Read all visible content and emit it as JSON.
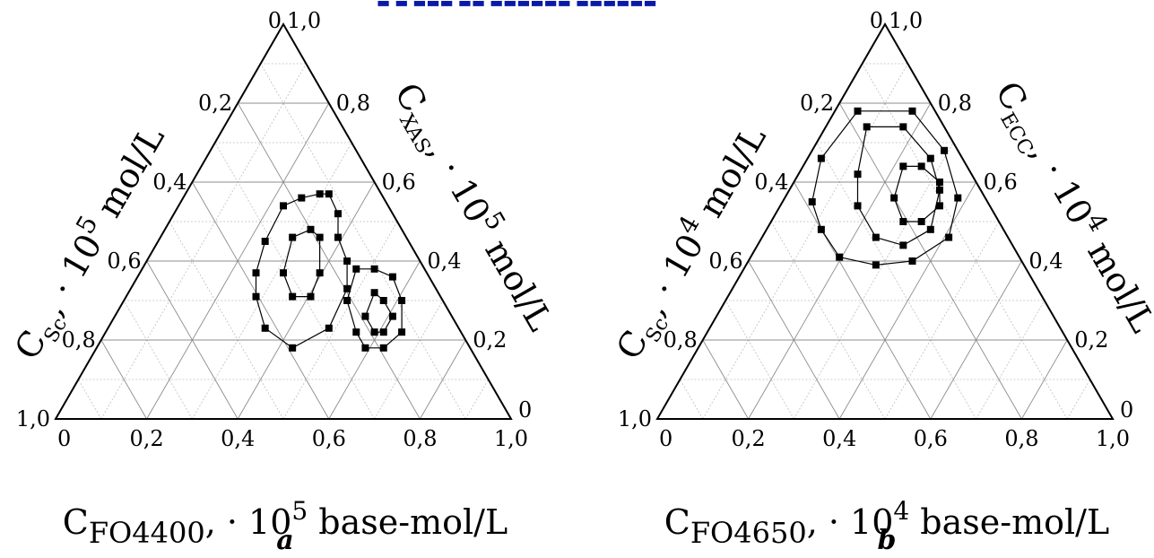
{
  "chart_data": [
    {
      "type": "scatter",
      "subtype": "ternary",
      "panel_label": "a",
      "axes": {
        "bottom": {
          "label_main": "C",
          "label_sub": "FO4400",
          "label_rest": ", · 10",
          "label_exp": "5",
          "label_unit": "base-mol/L",
          "ticks": [
            "0",
            "0,2",
            "0,4",
            "0,6",
            "0,8",
            "1,0"
          ]
        },
        "left": {
          "label_main": "C",
          "label_sub": "Sc",
          "label_rest": ", · 10",
          "label_exp": "5",
          "label_unit": "mol/L",
          "ticks": [
            "1,0",
            "0,8",
            "0,6",
            "0,4",
            "0,2",
            "0"
          ]
        },
        "right": {
          "label_main": "C",
          "label_sub": "XAS",
          "label_rest": ", · 10",
          "label_exp": "5",
          "label_unit": "mol/L",
          "ticks": [
            "1,0",
            "0,8",
            "0,6",
            "0,4",
            "0,2",
            "0"
          ]
        }
      },
      "series": [
        {
          "points": [
            [
              0.5,
              0.54
            ],
            [
              0.54,
              0.56
            ],
            [
              0.58,
              0.57
            ],
            [
              0.6,
              0.57
            ],
            [
              0.62,
              0.52
            ],
            [
              0.62,
              0.46
            ],
            [
              0.64,
              0.4
            ],
            [
              0.64,
              0.33
            ],
            [
              0.6,
              0.23
            ],
            [
              0.52,
              0.18
            ],
            [
              0.46,
              0.23
            ],
            [
              0.44,
              0.31
            ],
            [
              0.44,
              0.37
            ],
            [
              0.46,
              0.45
            ],
            [
              0.5,
              0.54
            ]
          ]
        },
        {
          "points": [
            [
              0.52,
              0.46
            ],
            [
              0.56,
              0.48
            ],
            [
              0.58,
              0.46
            ],
            [
              0.58,
              0.37
            ],
            [
              0.56,
              0.31
            ],
            [
              0.52,
              0.31
            ],
            [
              0.5,
              0.37
            ],
            [
              0.52,
              0.46
            ]
          ]
        },
        {
          "points": [
            [
              0.66,
              0.38
            ],
            [
              0.7,
              0.38
            ],
            [
              0.74,
              0.36
            ],
            [
              0.76,
              0.3
            ],
            [
              0.76,
              0.22
            ],
            [
              0.72,
              0.18
            ],
            [
              0.68,
              0.18
            ],
            [
              0.66,
              0.22
            ],
            [
              0.64,
              0.3
            ],
            [
              0.66,
              0.38
            ]
          ]
        },
        {
          "points": [
            [
              0.7,
              0.32
            ],
            [
              0.72,
              0.3
            ],
            [
              0.74,
              0.26
            ],
            [
              0.72,
              0.22
            ],
            [
              0.7,
              0.22
            ],
            [
              0.68,
              0.26
            ],
            [
              0.7,
              0.32
            ]
          ]
        }
      ]
    },
    {
      "type": "scatter",
      "subtype": "ternary",
      "panel_label": "b",
      "axes": {
        "bottom": {
          "label_main": "C",
          "label_sub": "FO4650",
          "label_rest": ", · 10",
          "label_exp": "4",
          "label_unit": "base-mol/L",
          "ticks": [
            "0",
            "0,2",
            "0,4",
            "0,6",
            "0,8",
            "1,0"
          ]
        },
        "left": {
          "label_main": "C",
          "label_sub": "Sc",
          "label_rest": ", · 10",
          "label_exp": "4",
          "label_unit": "mol/L",
          "ticks": [
            "1,0",
            "0,8",
            "0,6",
            "0,4",
            "0,2",
            "0"
          ]
        },
        "right": {
          "label_main": "C",
          "label_sub": "ECC",
          "label_rest": ", · 10",
          "label_exp": "4",
          "label_unit": "mol/L",
          "ticks": [
            "1,0",
            "0,8",
            "0,6",
            "0,4",
            "0,2",
            "0"
          ]
        }
      },
      "series": [
        {
          "points": [
            [
              0.36,
              0.66
            ],
            [
              0.44,
              0.78
            ],
            [
              0.56,
              0.78
            ],
            [
              0.63,
              0.68
            ],
            [
              0.66,
              0.56
            ],
            [
              0.64,
              0.46
            ],
            [
              0.56,
              0.4
            ],
            [
              0.48,
              0.39
            ],
            [
              0.4,
              0.41
            ],
            [
              0.36,
              0.48
            ],
            [
              0.34,
              0.55
            ],
            [
              0.36,
              0.66
            ]
          ]
        },
        {
          "points": [
            [
              0.46,
              0.74
            ],
            [
              0.54,
              0.74
            ],
            [
              0.6,
              0.66
            ],
            [
              0.62,
              0.58
            ],
            [
              0.6,
              0.48
            ],
            [
              0.54,
              0.44
            ],
            [
              0.48,
              0.46
            ],
            [
              0.44,
              0.54
            ],
            [
              0.44,
              0.62
            ],
            [
              0.46,
              0.74
            ]
          ]
        },
        {
          "points": [
            [
              0.54,
              0.64
            ],
            [
              0.58,
              0.64
            ],
            [
              0.62,
              0.6
            ],
            [
              0.62,
              0.54
            ],
            [
              0.58,
              0.5
            ],
            [
              0.54,
              0.5
            ],
            [
              0.52,
              0.56
            ],
            [
              0.54,
              0.64
            ]
          ]
        }
      ]
    }
  ]
}
